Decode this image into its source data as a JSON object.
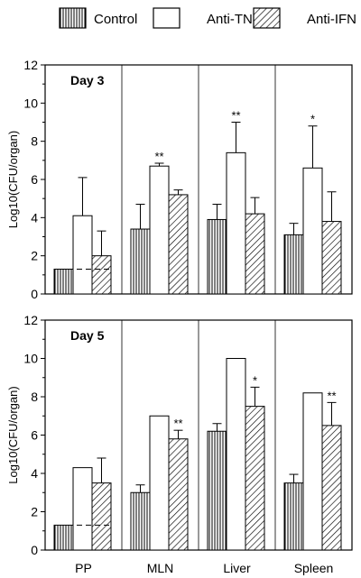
{
  "legend": [
    {
      "name": "Control",
      "pattern": "vertical"
    },
    {
      "name": "Anti-TNF",
      "pattern": "open"
    },
    {
      "name": "Anti-IFN",
      "pattern": "diagonal"
    }
  ],
  "ylabel": "Log10(CFU/organ)",
  "categories": [
    "PP",
    "MLN",
    "Liver",
    "Spleen"
  ],
  "chart_data": [
    {
      "type": "bar",
      "panel": "Day 3",
      "categories": [
        "PP",
        "MLN",
        "Liver",
        "Spleen"
      ],
      "ylabel": "Log10(CFU/organ)",
      "ylim": [
        0,
        12
      ],
      "yticks": [
        0,
        2,
        4,
        6,
        8,
        10,
        12
      ],
      "series": [
        {
          "name": "Control",
          "values": [
            1.3,
            3.4,
            3.9,
            3.1
          ],
          "errors": [
            0,
            1.3,
            0.8,
            0.6
          ],
          "marks": [
            "",
            "",
            "",
            ""
          ]
        },
        {
          "name": "Anti-TNF",
          "values": [
            4.1,
            6.7,
            7.4,
            6.6
          ],
          "errors": [
            2.0,
            0.15,
            1.6,
            2.2
          ],
          "marks": [
            "",
            "**",
            "**",
            "*"
          ]
        },
        {
          "name": "Anti-IFN",
          "values": [
            2.0,
            5.2,
            4.2,
            3.8
          ],
          "errors": [
            1.3,
            0.25,
            0.85,
            1.55
          ],
          "marks": [
            "",
            "",
            "",
            ""
          ]
        }
      ],
      "detection_limit": 1.3
    },
    {
      "type": "bar",
      "panel": "Day 5",
      "categories": [
        "PP",
        "MLN",
        "Liver",
        "Spleen"
      ],
      "ylabel": "Log10(CFU/organ)",
      "ylim": [
        0,
        12
      ],
      "yticks": [
        0,
        2,
        4,
        6,
        8,
        10,
        12
      ],
      "series": [
        {
          "name": "Control",
          "values": [
            1.3,
            3.0,
            6.2,
            3.5
          ],
          "errors": [
            0,
            0.4,
            0.4,
            0.45
          ],
          "marks": [
            "",
            "",
            "",
            ""
          ]
        },
        {
          "name": "Anti-TNF",
          "values": [
            4.3,
            7.0,
            10.0,
            8.2
          ],
          "errors": [
            0,
            0,
            0,
            0
          ],
          "marks": [
            "",
            "",
            "",
            ""
          ]
        },
        {
          "name": "Anti-IFN",
          "values": [
            3.5,
            5.8,
            7.5,
            6.5
          ],
          "errors": [
            1.3,
            0.45,
            1.0,
            1.2
          ],
          "marks": [
            "",
            "**",
            "*",
            "**"
          ]
        }
      ],
      "detection_limit": 1.3
    }
  ]
}
